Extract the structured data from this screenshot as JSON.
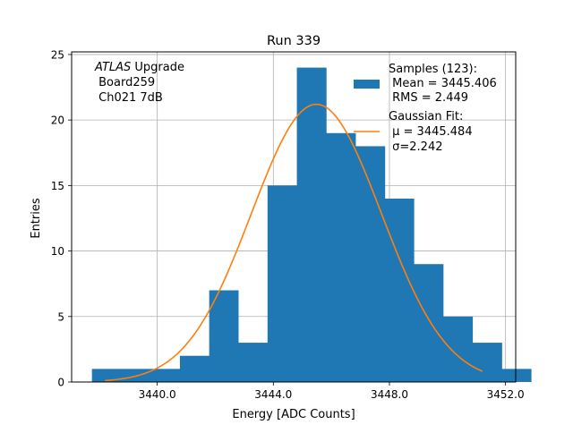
{
  "chart_data": {
    "type": "bar",
    "title": "Run 339",
    "xlabel": "Energy [ADC Counts]",
    "ylabel": "Entries",
    "xlim": [
      3437.05,
      3452.35
    ],
    "ylim": [
      0,
      25.2
    ],
    "grid": true,
    "x_ticks": [
      3440.0,
      3444.0,
      3448.0,
      3452.0
    ],
    "x_tick_labels": [
      "3440.0",
      "3444.0",
      "3448.0",
      "3452.0"
    ],
    "y_ticks": [
      0,
      5,
      10,
      15,
      20,
      25
    ],
    "y_tick_labels": [
      "0",
      "5",
      "10",
      "15",
      "20",
      "25"
    ],
    "annotation": {
      "italic": "ATLAS",
      "rest": " Upgrade",
      "line2": " Board259",
      "line3": " Ch021 7dB"
    },
    "histogram": {
      "bin_edges": [
        3437.75,
        3438.76,
        3439.77,
        3440.78,
        3441.79,
        3442.79,
        3443.8,
        3444.81,
        3445.82,
        3446.83,
        3447.84,
        3448.84,
        3449.85,
        3450.86,
        3451.87
      ],
      "counts": [
        1,
        1,
        1,
        2,
        7,
        3,
        15,
        24,
        19,
        18,
        14,
        9,
        5,
        3,
        1
      ],
      "color": "#1f77b4"
    },
    "fit": {
      "type": "gaussian",
      "mu": 3445.484,
      "sigma": 2.242,
      "amplitude": 21.2,
      "x_range": [
        3438.2,
        3451.2
      ],
      "color": "#ff7f0e"
    },
    "legend": {
      "position": "upper right",
      "entries": [
        {
          "lines": [
            "Samples (123):",
            " Mean = 3445.406",
            " RMS = 2.449"
          ],
          "marker": "patch",
          "color": "#1f77b4"
        },
        {
          "lines": [
            "Gaussian Fit:",
            " μ = 3445.484",
            " σ=2.242"
          ],
          "marker": "line",
          "color": "#ff7f0e"
        }
      ]
    }
  }
}
